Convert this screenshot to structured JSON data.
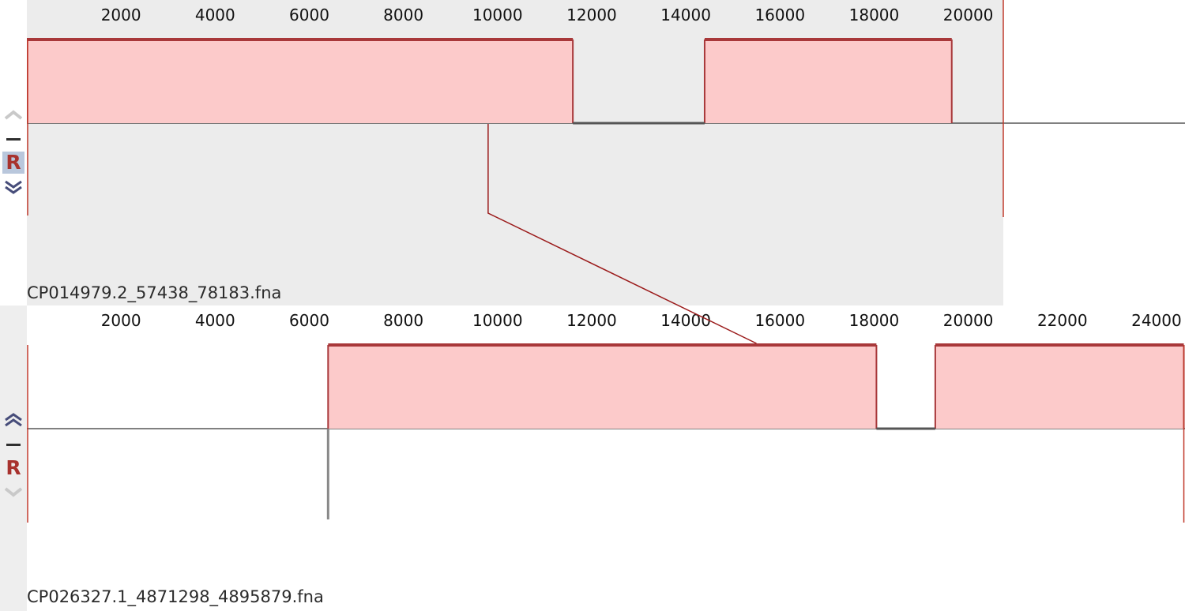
{
  "panels": [
    {
      "sequence_name": "CP014979.2_57438_78183.fna",
      "ruler_ticks": [
        "2000",
        "4000",
        "6000",
        "8000",
        "10000",
        "12000",
        "14000",
        "16000",
        "18000",
        "20000"
      ],
      "ruler_range": [
        0,
        20745
      ],
      "track_background": "#ececec",
      "icons": [
        "move-up-icon",
        "minus-icon",
        "reset-icon",
        "move-down-icon"
      ],
      "reset_label": "R",
      "blocks": [
        {
          "start": 0,
          "end": 11600,
          "strand": "forward"
        },
        {
          "start": 14400,
          "end": 19650,
          "strand": "forward"
        }
      ],
      "gaps": [
        {
          "start": 11600,
          "end": 14400
        }
      ]
    },
    {
      "sequence_name": "CP026327.1_4871298_4895879.fna",
      "ruler_ticks": [
        "2000",
        "4000",
        "6000",
        "8000",
        "10000",
        "12000",
        "14000",
        "16000",
        "18000",
        "20000",
        "22000",
        "24000"
      ],
      "ruler_range": [
        0,
        24581
      ],
      "track_background": "#ffffff",
      "icons": [
        "move-up-icon",
        "minus-icon",
        "reset-icon",
        "move-down-icon"
      ],
      "reset_label": "R",
      "blocks": [
        {
          "start": 6400,
          "end": 18050,
          "strand": "forward"
        },
        {
          "start": 19300,
          "end": 24581,
          "strand": "forward"
        }
      ],
      "gaps": [
        {
          "start": 18050,
          "end": 19300
        }
      ]
    }
  ],
  "connector": {
    "from_position": 9800,
    "to_position": 15500
  },
  "colors": {
    "block_fill": "#fccaca",
    "block_edge": "#a8383a",
    "gap_line": "#555555",
    "axis_line": "#000000",
    "connector": "#9b1b1b",
    "end_marker": "#c0392b"
  }
}
